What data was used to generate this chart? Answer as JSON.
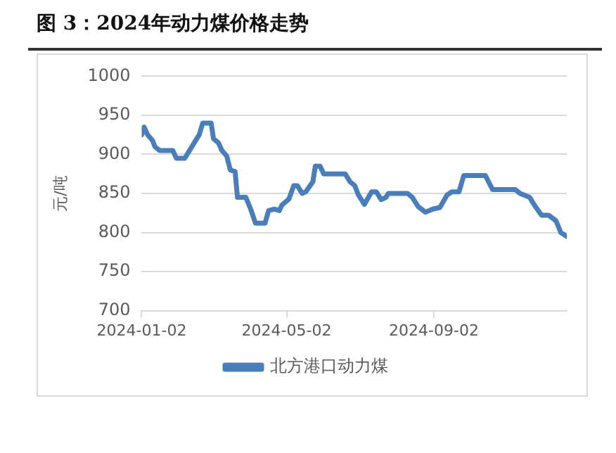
{
  "chart_data": {
    "type": "line",
    "title": "图 3：2024年动力煤价格走势",
    "ylabel": "元/吨",
    "x": [
      "2024-01-02",
      "2024-01-04",
      "2024-01-07",
      "2024-01-11",
      "2024-01-13",
      "2024-01-17",
      "2024-01-28",
      "2024-01-31",
      "2024-02-07",
      "2024-02-11",
      "2024-02-19",
      "2024-02-22",
      "2024-02-29",
      "2024-03-02",
      "2024-03-06",
      "2024-03-09",
      "2024-03-13",
      "2024-03-16",
      "2024-03-20",
      "2024-03-22",
      "2024-03-29",
      "2024-04-02",
      "2024-04-06",
      "2024-04-14",
      "2024-04-17",
      "2024-04-22",
      "2024-04-26",
      "2024-04-28",
      "2024-05-04",
      "2024-05-08",
      "2024-05-11",
      "2024-05-15",
      "2024-05-18",
      "2024-05-24",
      "2024-05-26",
      "2024-05-30",
      "2024-06-02",
      "2024-06-20",
      "2024-06-24",
      "2024-06-28",
      "2024-07-01",
      "2024-07-06",
      "2024-07-12",
      "2024-07-16",
      "2024-07-20",
      "2024-07-24",
      "2024-07-26",
      "2024-08-11",
      "2024-08-15",
      "2024-08-20",
      "2024-08-26",
      "2024-09-01",
      "2024-09-07",
      "2024-09-13",
      "2024-09-17",
      "2024-09-23",
      "2024-09-27",
      "2024-10-15",
      "2024-10-21",
      "2024-11-09",
      "2024-11-13",
      "2024-11-21",
      "2024-11-25",
      "2024-12-01",
      "2024-12-07",
      "2024-12-13",
      "2024-12-17",
      "2024-12-22"
    ],
    "series": [
      {
        "name": "北方港口动力煤",
        "color": "#4a7ebb",
        "values": [
          925,
          935,
          925,
          918,
          910,
          905,
          905,
          895,
          895,
          905,
          925,
          940,
          940,
          920,
          915,
          905,
          898,
          880,
          878,
          845,
          845,
          830,
          812,
          812,
          828,
          830,
          828,
          835,
          843,
          860,
          860,
          850,
          852,
          865,
          885,
          885,
          875,
          875,
          865,
          860,
          848,
          836,
          852,
          852,
          842,
          845,
          850,
          850,
          845,
          833,
          826,
          830,
          832,
          848,
          852,
          852,
          873,
          873,
          855,
          855,
          850,
          845,
          835,
          822,
          822,
          815,
          800,
          795
        ]
      }
    ],
    "xlim": [
      "2024-01-02",
      "2024-12-22"
    ],
    "xticks": [
      "2024-01-02",
      "2024-05-02",
      "2024-09-02"
    ],
    "ylim": [
      700,
      1000
    ],
    "yticks": [
      700,
      750,
      800,
      850,
      900,
      950,
      1000
    ],
    "grid": "y",
    "legend": "bottom",
    "marker": "none",
    "line_style": "solid"
  }
}
